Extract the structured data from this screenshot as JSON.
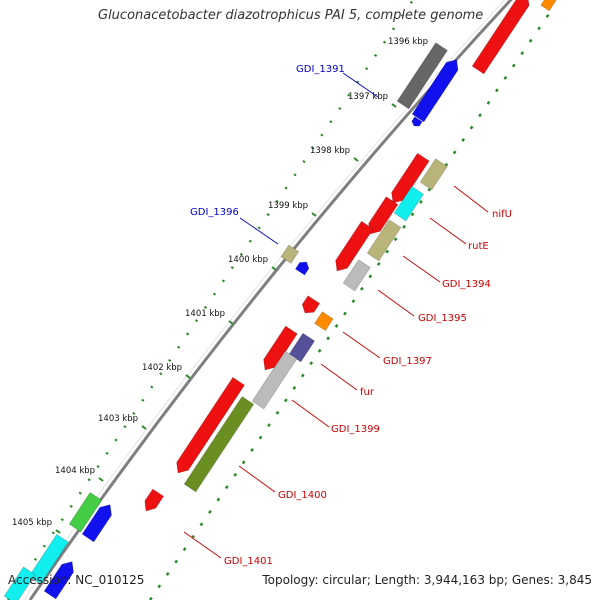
{
  "header": {
    "title": "Gluconacetobacter diazotrophicus PAI 5, complete genome"
  },
  "footer": {
    "accession": "Accession: NC_010125",
    "topology": "Topology: circular; Length: 3,944,163 bp; Genes: 3,845"
  },
  "colors": {
    "backbone": "#7f7f7f",
    "tick_dots": "#2a8a2a",
    "label_red": "#cc0000",
    "label_blue": "#0000cc",
    "gene_red": "#ee1111",
    "gene_blue": "#1111ee",
    "gene_grey": "#666666",
    "gene_lightgrey": "#bbbbbb",
    "gene_khaki": "#b9b47a",
    "gene_cyan": "#11eeee",
    "gene_orange": "#ff8a00",
    "gene_purple": "#55509a",
    "gene_olive": "#6b8e23",
    "gene_green": "#44cc44"
  },
  "scale_ticks": [
    "1396 kbp",
    "1397 kbp",
    "1398 kbp",
    "1399 kbp",
    "1400 kbp",
    "1401 kbp",
    "1402 kbp",
    "1403 kbp",
    "1404 kbp",
    "1405 kbp"
  ],
  "gene_labels": [
    "GDI_1391",
    "GDI_1396",
    "nifU",
    "rutE",
    "GDI_1394",
    "GDI_1395",
    "GDI_1397",
    "fur",
    "GDI_1399",
    "GDI_1400",
    "GDI_1401"
  ]
}
